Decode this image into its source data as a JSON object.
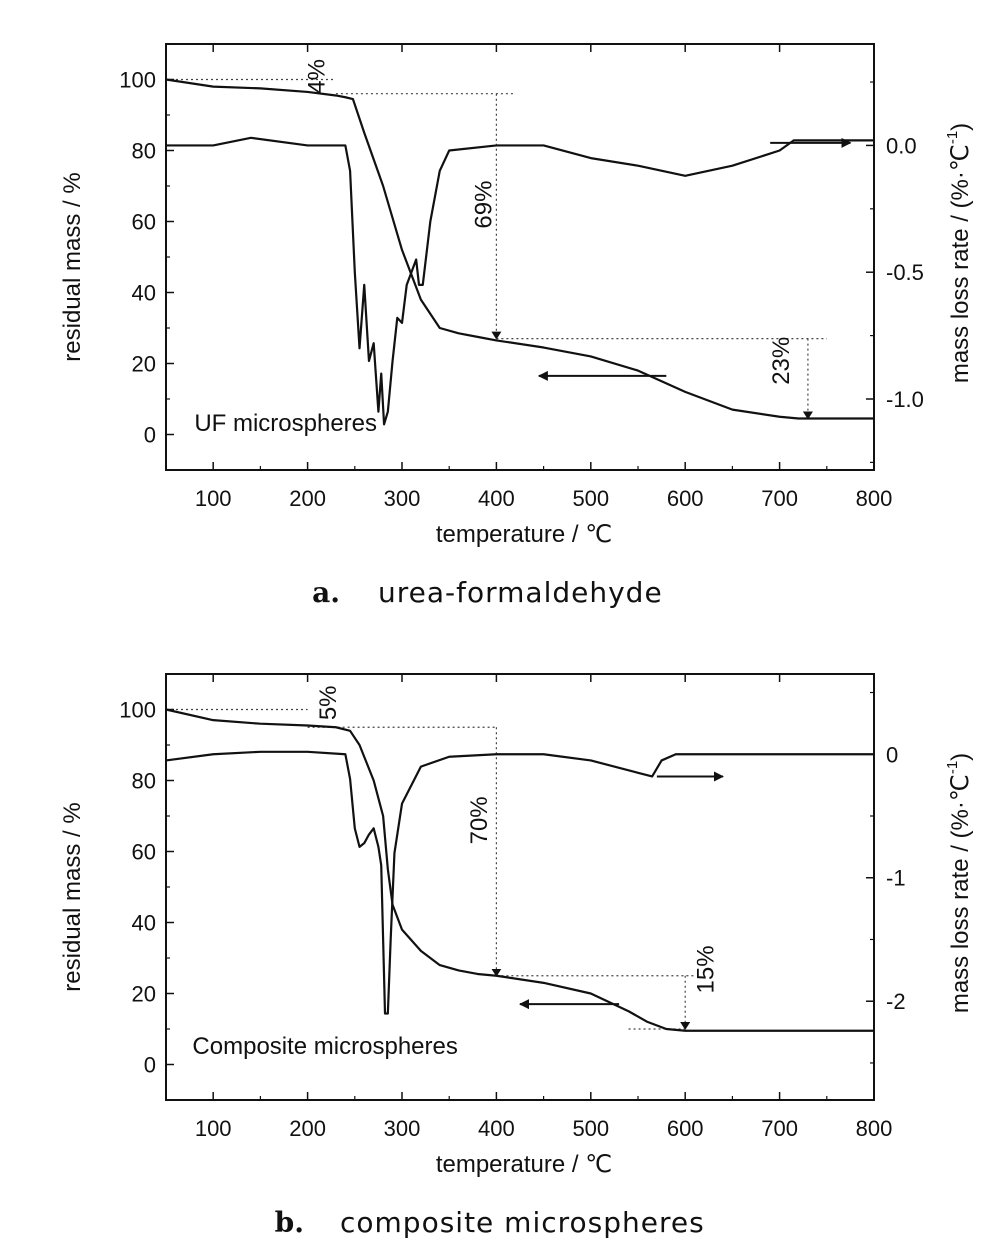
{
  "chart_data": [
    {
      "type": "line",
      "panel_label": "a.",
      "caption": "urea-formaldehyde",
      "sample_label": "UF microspheres",
      "xlabel": "temperature / ℃",
      "ylabel_left": "residual mass / %",
      "ylabel_right": "mass loss rate / (%·℃",
      "ylabel_right_sup": "-1",
      "ylabel_right_tail": ")",
      "xlim": [
        50,
        800
      ],
      "ylim_left": [
        -10,
        110
      ],
      "ylim_right": [
        -1.28,
        0.4
      ],
      "xticks": [
        100,
        200,
        300,
        400,
        500,
        600,
        700,
        800
      ],
      "yticks_left": [
        0,
        20,
        40,
        60,
        80,
        100
      ],
      "yticks_right": [
        -1.0,
        -0.5,
        0.0
      ],
      "yticks_right_labels": [
        "-1.0",
        "-0.5",
        "0.0"
      ],
      "series": [
        {
          "axis": "left",
          "x": [
            50,
            100,
            150,
            200,
            230,
            240,
            248,
            260,
            280,
            300,
            320,
            340,
            360,
            380,
            400,
            450,
            500,
            550,
            600,
            650,
            700,
            720,
            750,
            800
          ],
          "y": [
            100,
            98,
            97.5,
            96.5,
            95.5,
            95,
            94.5,
            85,
            70,
            52,
            38,
            30,
            28.5,
            27.5,
            26.5,
            24.5,
            22,
            18,
            12,
            7,
            5,
            4.5,
            4.5,
            4.5
          ]
        },
        {
          "axis": "right",
          "x": [
            50,
            100,
            140,
            200,
            240,
            245,
            250,
            255,
            260,
            265,
            270,
            275,
            278,
            281,
            285,
            290,
            295,
            300,
            305,
            310,
            315,
            318,
            322,
            330,
            340,
            350,
            400,
            450,
            500,
            550,
            600,
            650,
            700,
            715,
            750,
            800
          ],
          "y": [
            0,
            0,
            0.03,
            0,
            0,
            -0.1,
            -0.5,
            -0.8,
            -0.55,
            -0.85,
            -0.78,
            -1.05,
            -0.9,
            -1.1,
            -1.05,
            -0.85,
            -0.68,
            -0.7,
            -0.55,
            -0.5,
            -0.45,
            -0.55,
            -0.55,
            -0.3,
            -0.1,
            -0.02,
            0,
            0,
            -0.05,
            -0.08,
            -0.12,
            -0.08,
            -0.02,
            0.02,
            0.02,
            0.02
          ]
        }
      ],
      "annotations": [
        {
          "text": "4%",
          "x": 218,
          "y": 96
        },
        {
          "text": "69%",
          "x": 395,
          "y": 58
        },
        {
          "text": "23%",
          "x": 710,
          "y": 14
        }
      ],
      "guide_lines": [
        {
          "points": [
            [
              50,
              100
            ],
            [
              230,
              100
            ]
          ]
        },
        {
          "points": [
            [
              230,
              96
            ],
            [
              420,
              96
            ]
          ]
        },
        {
          "points": [
            [
              400,
              96
            ],
            [
              400,
              27
            ]
          ]
        },
        {
          "points": [
            [
              400,
              27
            ],
            [
              750,
              27
            ]
          ]
        },
        {
          "points": [
            [
              730,
              27
            ],
            [
              730,
              4.5
            ]
          ]
        }
      ],
      "arrows_left": [
        {
          "from": [
            580,
            16.5
          ],
          "to": [
            445,
            16.5
          ]
        }
      ],
      "arrows_right": [
        {
          "from": [
            690,
            0.01
          ],
          "to": [
            775,
            0.01
          ]
        }
      ],
      "grid": false
    },
    {
      "type": "line",
      "panel_label": "b.",
      "caption": "composite microspheres",
      "sample_label": "Composite microspheres",
      "xlabel": "temperature / ℃",
      "ylabel_left": "residual mass / %",
      "ylabel_right": "mass loss rate / (%·℃",
      "ylabel_right_sup": "-1",
      "ylabel_right_tail": ")",
      "xlim": [
        50,
        800
      ],
      "ylim_left": [
        -10,
        110
      ],
      "ylim_right": [
        -2.8,
        0.65
      ],
      "xticks": [
        100,
        200,
        300,
        400,
        500,
        600,
        700,
        800
      ],
      "yticks_left": [
        0,
        20,
        40,
        60,
        80,
        100
      ],
      "yticks_right": [
        -2,
        -1,
        0
      ],
      "yticks_right_labels": [
        "-2",
        "-1",
        "0"
      ],
      "series": [
        {
          "axis": "left",
          "x": [
            50,
            100,
            150,
            200,
            230,
            245,
            255,
            270,
            280,
            285,
            290,
            300,
            320,
            340,
            360,
            380,
            400,
            450,
            500,
            540,
            560,
            580,
            600,
            700,
            800
          ],
          "y": [
            100,
            97,
            96,
            95.5,
            95,
            94,
            90,
            80,
            70,
            55,
            45,
            38,
            32,
            28,
            26.5,
            25.5,
            25,
            23,
            20,
            15,
            12,
            10,
            9.5,
            9.5,
            9.5
          ]
        },
        {
          "axis": "right",
          "x": [
            50,
            100,
            150,
            200,
            240,
            245,
            250,
            255,
            260,
            265,
            270,
            275,
            278,
            280,
            282,
            285,
            288,
            292,
            300,
            320,
            350,
            400,
            450,
            500,
            550,
            565,
            575,
            590,
            650,
            700,
            800
          ],
          "y": [
            -0.05,
            0,
            0.02,
            0.02,
            0,
            -0.2,
            -0.6,
            -0.75,
            -0.72,
            -0.65,
            -0.6,
            -0.75,
            -0.9,
            -1.5,
            -2.1,
            -2.1,
            -1.5,
            -0.8,
            -0.4,
            -0.1,
            -0.02,
            0,
            0,
            -0.05,
            -0.15,
            -0.18,
            -0.05,
            0,
            0,
            0,
            0
          ]
        }
      ],
      "annotations": [
        {
          "text": "5%",
          "x": 230,
          "y": 97
        },
        {
          "text": "70%",
          "x": 390,
          "y": 62
        },
        {
          "text": "15%",
          "x": 630,
          "y": 20
        }
      ],
      "guide_lines": [
        {
          "points": [
            [
              50,
              100
            ],
            [
              200,
              100
            ]
          ]
        },
        {
          "points": [
            [
              200,
              95
            ],
            [
              400,
              95
            ]
          ]
        },
        {
          "points": [
            [
              400,
              95
            ],
            [
              400,
              25
            ]
          ]
        },
        {
          "points": [
            [
              400,
              25
            ],
            [
              610,
              25
            ]
          ]
        },
        {
          "points": [
            [
              600,
              25
            ],
            [
              600,
              10
            ]
          ]
        },
        {
          "points": [
            [
              540,
              10
            ],
            [
              600,
              10
            ]
          ]
        }
      ],
      "arrows_left": [
        {
          "from": [
            530,
            17
          ],
          "to": [
            425,
            17
          ]
        }
      ],
      "arrows_right": [
        {
          "from": [
            570,
            -0.18
          ],
          "to": [
            640,
            -0.18
          ]
        }
      ],
      "grid": false
    }
  ]
}
